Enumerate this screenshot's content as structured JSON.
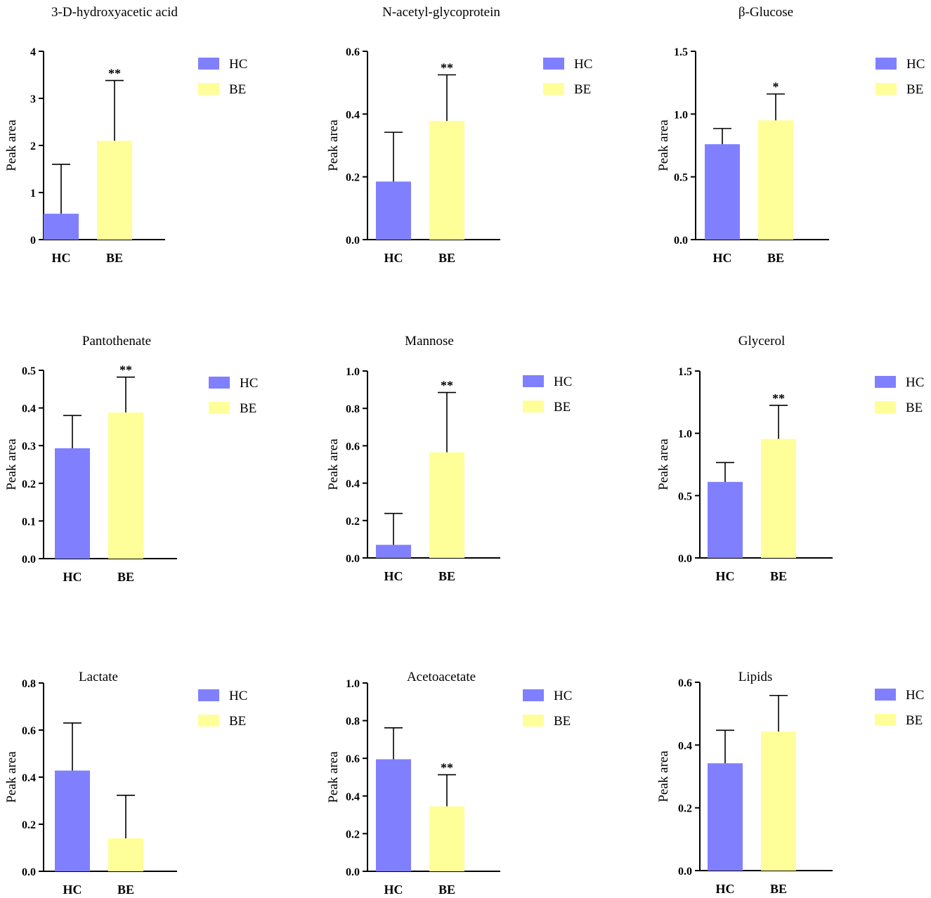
{
  "colors": {
    "HC": "#8080ff",
    "BE": "#ffff99",
    "axis": "#000000"
  },
  "legend": [
    "HC",
    "BE"
  ],
  "chart_data": [
    {
      "type": "bar",
      "title": "3-D-hydroxyacetic acid",
      "ylabel": "Peak area",
      "xlabel": "",
      "categories": [
        "HC",
        "BE"
      ],
      "values": [
        0.55,
        2.1
      ],
      "errors": [
        1.05,
        1.28
      ],
      "ylim": [
        0,
        4
      ],
      "yticks": [
        "0",
        "1",
        "2",
        "3",
        "4"
      ],
      "significance": "**"
    },
    {
      "type": "bar",
      "title": "N-acetyl-glycoprotein",
      "ylabel": "Peak area",
      "xlabel": "",
      "categories": [
        "HC",
        "BE"
      ],
      "values": [
        0.185,
        0.378
      ],
      "errors": [
        0.157,
        0.147
      ],
      "ylim": [
        0,
        0.6
      ],
      "yticks": [
        "0.0",
        "0.2",
        "0.4",
        "0.6"
      ],
      "significance": "**"
    },
    {
      "type": "bar",
      "title": "β-Glucose",
      "ylabel": "Peak area",
      "xlabel": "",
      "categories": [
        "HC",
        "BE"
      ],
      "values": [
        0.76,
        0.95
      ],
      "errors": [
        0.125,
        0.21
      ],
      "ylim": [
        0,
        1.5
      ],
      "yticks": [
        "0.0",
        "0.5",
        "1.0",
        "1.5"
      ],
      "significance": "*"
    },
    {
      "type": "bar",
      "title": "Pantothenate",
      "ylabel": "Peak area",
      "xlabel": "",
      "categories": [
        "HC",
        "BE"
      ],
      "values": [
        0.293,
        0.388
      ],
      "errors": [
        0.087,
        0.094
      ],
      "ylim": [
        0,
        0.5
      ],
      "yticks": [
        "0.0",
        "0.1",
        "0.2",
        "0.3",
        "0.4",
        "0.5"
      ],
      "significance": "**"
    },
    {
      "type": "bar",
      "title": "Mannose",
      "ylabel": "Peak area",
      "xlabel": "",
      "categories": [
        "HC",
        "BE"
      ],
      "values": [
        0.07,
        0.565
      ],
      "errors": [
        0.168,
        0.32
      ],
      "ylim": [
        0,
        1.0
      ],
      "yticks": [
        "0.0",
        "0.2",
        "0.4",
        "0.6",
        "0.8",
        "1.0"
      ],
      "significance": "**"
    },
    {
      "type": "bar",
      "title": "Glycerol",
      "ylabel": "Peak area",
      "xlabel": "",
      "categories": [
        "HC",
        "BE"
      ],
      "values": [
        0.61,
        0.955
      ],
      "errors": [
        0.155,
        0.27
      ],
      "ylim": [
        0,
        1.5
      ],
      "yticks": [
        "0.0",
        "0.5",
        "1.0",
        "1.5"
      ],
      "significance": "**"
    },
    {
      "type": "bar",
      "title": "Lactate",
      "ylabel": "Peak area",
      "xlabel": "",
      "categories": [
        "HC",
        "BE"
      ],
      "values": [
        0.428,
        0.14
      ],
      "errors": [
        0.202,
        0.183
      ],
      "ylim": [
        0,
        0.8
      ],
      "yticks": [
        "0.0",
        "0.2",
        "0.4",
        "0.6",
        "0.8"
      ],
      "significance": ""
    },
    {
      "type": "bar",
      "title": "Acetoacetate",
      "ylabel": "Peak area",
      "xlabel": "",
      "categories": [
        "HC",
        "BE"
      ],
      "values": [
        0.595,
        0.345
      ],
      "errors": [
        0.167,
        0.168
      ],
      "ylim": [
        0,
        1.0
      ],
      "yticks": [
        "0.0",
        "0.2",
        "0.4",
        "0.6",
        "0.8",
        "1.0"
      ],
      "significance": "**"
    },
    {
      "type": "bar",
      "title": "Lipids",
      "ylabel": "Peak area",
      "xlabel": "",
      "categories": [
        "HC",
        "BE"
      ],
      "values": [
        0.342,
        0.443
      ],
      "errors": [
        0.105,
        0.115
      ],
      "ylim": [
        0,
        0.6
      ],
      "yticks": [
        "0.0",
        "0.2",
        "0.4",
        "0.6"
      ],
      "significance": ""
    }
  ]
}
